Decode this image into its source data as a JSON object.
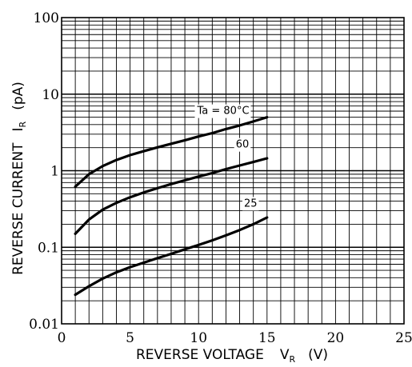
{
  "chart_data": {
    "type": "line",
    "xlabel": "REVERSE VOLTAGE",
    "xlabel_symbol": "V",
    "xlabel_subscript": "R",
    "xlabel_unit": "(V)",
    "ylabel": "REVERSE CURRENT",
    "ylabel_symbol": "I",
    "ylabel_subscript": "R",
    "ylabel_unit": "(pA)",
    "x_ticks": [
      "0",
      "5",
      "10",
      "15",
      "20",
      "25"
    ],
    "y_ticks": [
      "0.01",
      "0.1",
      "1",
      "10",
      "100"
    ],
    "xlim": [
      0,
      25
    ],
    "ylim": [
      0.01,
      100
    ],
    "yscale": "log",
    "grid": true,
    "series": [
      {
        "label": "Ta = 80°C",
        "x": [
          1,
          2,
          3,
          4,
          5,
          6,
          7,
          8,
          9,
          10,
          11,
          12,
          13,
          14,
          15
        ],
        "y": [
          0.62,
          0.9,
          1.15,
          1.38,
          1.6,
          1.8,
          2.02,
          2.25,
          2.5,
          2.8,
          3.1,
          3.5,
          3.9,
          4.4,
          5.0
        ]
      },
      {
        "label": "60",
        "x": [
          1,
          2,
          3,
          4,
          5,
          6,
          7,
          8,
          9,
          10,
          11,
          12,
          13,
          14,
          15
        ],
        "y": [
          0.15,
          0.23,
          0.31,
          0.38,
          0.45,
          0.52,
          0.59,
          0.67,
          0.75,
          0.84,
          0.93,
          1.05,
          1.17,
          1.3,
          1.45
        ]
      },
      {
        "label": "25",
        "x": [
          1,
          2,
          3,
          4,
          5,
          6,
          7,
          8,
          9,
          10,
          11,
          12,
          13,
          14,
          15
        ],
        "y": [
          0.024,
          0.031,
          0.039,
          0.047,
          0.055,
          0.063,
          0.072,
          0.082,
          0.094,
          0.107,
          0.123,
          0.143,
          0.168,
          0.2,
          0.245
        ]
      }
    ]
  }
}
